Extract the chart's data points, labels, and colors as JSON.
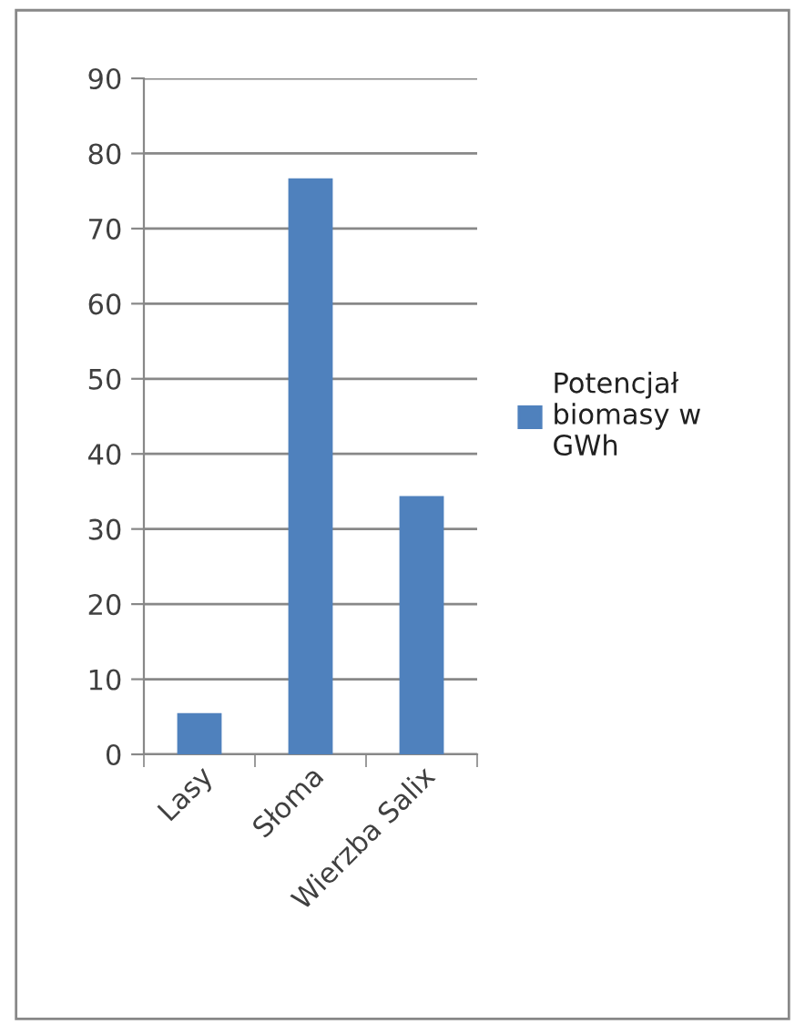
{
  "chart_data": {
    "type": "bar",
    "categories": [
      "Lasy",
      "Słoma",
      "Wierzba Salix"
    ],
    "series": [
      {
        "name": "Potencjał biomasy w GWh",
        "color": "#4f81bd",
        "values": [
          5.5,
          76.7,
          34.4
        ]
      }
    ],
    "ylim": [
      0,
      90
    ],
    "yticks": [
      0,
      10,
      20,
      30,
      40,
      50,
      60,
      70,
      80,
      90
    ],
    "grid": "y",
    "legend": "right"
  }
}
